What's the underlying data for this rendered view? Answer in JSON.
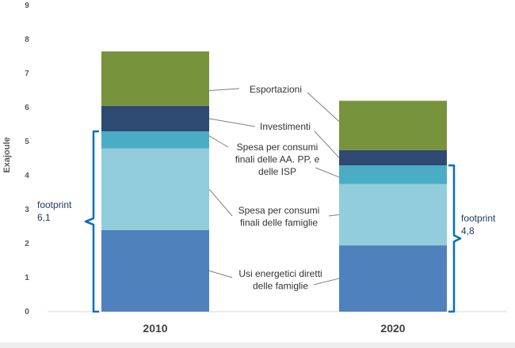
{
  "chart_data": {
    "type": "bar",
    "stacked": true,
    "title": "",
    "xlabel": "",
    "ylabel": "Exajoule",
    "ylim": [
      0,
      9
    ],
    "yticks": [
      "0",
      "1",
      "2",
      "3",
      "4",
      "5",
      "6",
      "7",
      "8",
      "9"
    ],
    "grid": false,
    "categories": [
      "2010",
      "2020"
    ],
    "series": [
      {
        "name": "Usi energetici diretti delle famiglie",
        "color": "#4f81bd",
        "values": [
          2.4,
          1.95
        ]
      },
      {
        "name": "Spesa per consumi finali delle famiglie",
        "color": "#92cddc",
        "values": [
          2.4,
          1.8
        ]
      },
      {
        "name": "Spesa per consumi finali delle AA. PP. e delle ISP",
        "color": "#4bacc6",
        "values": [
          0.5,
          0.55
        ]
      },
      {
        "name": "Investimenti",
        "color": "#2e4a73",
        "values": [
          0.75,
          0.45
        ]
      },
      {
        "name": "Esportazioni",
        "color": "#77933c",
        "values": [
          1.6,
          1.45
        ]
      }
    ],
    "annotations": {
      "esportazioni": [
        "Esportazioni"
      ],
      "investimenti": [
        "Investimenti"
      ],
      "aapp": [
        "Spesa per consumi",
        "finali delle AA. PP. e",
        "delle ISP"
      ],
      "famiglie": [
        "Spesa per consumi",
        "finali delle famiglie"
      ],
      "diretti": [
        "Usi energetici diretti",
        "delle famiglie"
      ]
    },
    "footprints": [
      {
        "category": "2010",
        "label": [
          "footprint",
          "6,1"
        ],
        "from": 0,
        "to": 5.3
      },
      {
        "category": "2020",
        "label": [
          "footprint",
          "4,8"
        ],
        "from": 0,
        "to": 4.3
      }
    ],
    "bracket_color": "#0070c0"
  }
}
